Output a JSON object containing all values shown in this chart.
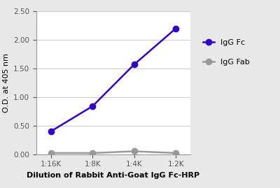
{
  "x_labels": [
    "1:16K",
    "1:8K",
    "1:4K",
    "1:2K"
  ],
  "x_values": [
    0,
    1,
    2,
    3
  ],
  "igg_fc_values": [
    0.4,
    0.84,
    1.57,
    2.2
  ],
  "igg_fab_values": [
    0.02,
    0.02,
    0.05,
    0.02
  ],
  "igg_fc_color": "#3300cc",
  "igg_fab_color": "#999999",
  "ylabel": "O.D. at 405 nm",
  "xlabel": "Dilution of Rabbit Anti-Goat IgG Fc-HRP",
  "ylim": [
    0.0,
    2.5
  ],
  "yticks": [
    0.0,
    0.5,
    1.0,
    1.5,
    2.0,
    2.5
  ],
  "legend_igg_fc": "IgG Fc",
  "legend_igg_fab": "IgG Fab",
  "bg_color": "#e8e8e8",
  "plot_bg_color": "#ffffff",
  "linewidth": 1.8,
  "markersize": 6,
  "tick_fontsize": 7.5,
  "label_fontsize": 8,
  "legend_fontsize": 8
}
